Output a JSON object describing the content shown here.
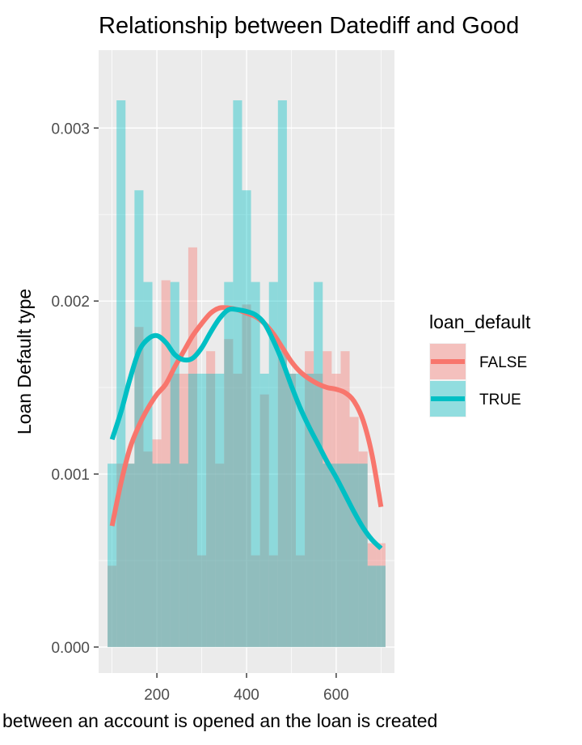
{
  "chart_data": {
    "type": "histogram",
    "title": "Relationship between Datediff and Good",
    "xlabel": "between an account is opened an the loan is created",
    "ylabel": "Loan Default type",
    "xlim": [
      70,
      730
    ],
    "ylim": [
      -0.00015,
      0.00345
    ],
    "x_ticks": [
      200,
      400,
      600
    ],
    "x_tick_labels": [
      "200",
      "400",
      "600"
    ],
    "y_ticks": [
      0,
      0.001,
      0.002,
      0.003
    ],
    "y_tick_labels": [
      "0.000",
      "0.001",
      "0.002",
      "0.003"
    ],
    "grid": true,
    "legend": {
      "title": "loan_default",
      "position": "right",
      "entries": [
        "FALSE",
        "TRUE"
      ]
    },
    "bin_start": 90,
    "bin_width": 20,
    "series": [
      {
        "name": "FALSE",
        "color": "#F8766D",
        "histogram_density": [
          0.00047,
          0.00106,
          0.00106,
          0.00185,
          0.00113,
          0.0012,
          0.00212,
          0.00158,
          0.00158,
          0.00231,
          0.00053,
          0.00171,
          0.00106,
          0.00178,
          0.00158,
          0.00198,
          0.00053,
          0.00146,
          0.00053,
          0.00171,
          0.00158,
          0.00053,
          0.00171,
          0.00158,
          0.00171,
          0.00158,
          0.00171,
          0.00133,
          0.00113,
          0.0006,
          0.0006
        ],
        "density_x": [
          100,
          120,
          140,
          160,
          180,
          200,
          220,
          240,
          260,
          280,
          300,
          320,
          340,
          360,
          380,
          400,
          420,
          440,
          460,
          480,
          500,
          520,
          540,
          560,
          580,
          600,
          620,
          640,
          660,
          680,
          700
        ],
        "density_y": [
          0.0007,
          0.00095,
          0.00115,
          0.00128,
          0.00138,
          0.00146,
          0.00152,
          0.00162,
          0.00171,
          0.0018,
          0.00187,
          0.00193,
          0.00196,
          0.00196,
          0.00195,
          0.00193,
          0.00191,
          0.00187,
          0.00181,
          0.00173,
          0.00165,
          0.00159,
          0.00155,
          0.00152,
          0.0015,
          0.00149,
          0.00147,
          0.00142,
          0.00131,
          0.00111,
          0.00081
        ]
      },
      {
        "name": "TRUE",
        "color": "#00BFC4",
        "histogram_density": [
          0.00106,
          0.00316,
          0.00106,
          0.00264,
          0.00211,
          0.00106,
          0.00106,
          0.00211,
          0.00106,
          0.00158,
          0.00158,
          0.00158,
          0.00158,
          0.00211,
          0.00316,
          0.00264,
          0.00211,
          0.00158,
          0.00211,
          0.00316,
          0.00158,
          0.00158,
          0.00158,
          0.00211,
          0.00106,
          0.00106,
          0.00106,
          0.00106,
          0.00106,
          0.00047,
          0.00047
        ],
        "density_x": [
          100,
          120,
          140,
          160,
          180,
          200,
          220,
          240,
          260,
          280,
          300,
          320,
          340,
          360,
          380,
          400,
          420,
          440,
          460,
          480,
          500,
          520,
          540,
          560,
          580,
          600,
          620,
          640,
          660,
          680,
          700
        ],
        "density_y": [
          0.0012,
          0.00136,
          0.00155,
          0.00171,
          0.00178,
          0.0018,
          0.00176,
          0.00169,
          0.00166,
          0.00167,
          0.00173,
          0.00182,
          0.0019,
          0.00195,
          0.00195,
          0.00194,
          0.00192,
          0.00187,
          0.00177,
          0.00165,
          0.00151,
          0.00138,
          0.00127,
          0.00117,
          0.00107,
          0.00098,
          0.00088,
          0.00078,
          0.00069,
          0.00062,
          0.00057
        ]
      }
    ]
  }
}
